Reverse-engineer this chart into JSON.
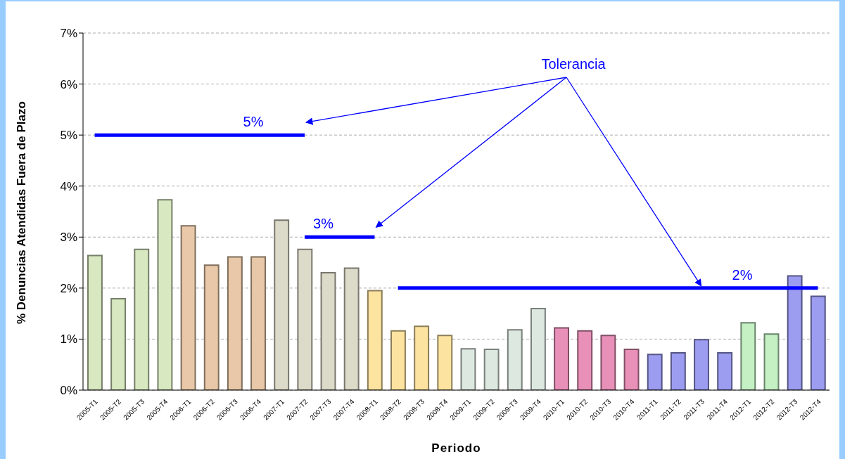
{
  "chart_data": {
    "type": "bar",
    "xlabel": "Periodo",
    "ylabel": "% Denuncias Atendidas Fuera de Plazo",
    "categories": [
      "2005-T1",
      "2005-T2",
      "2005-T3",
      "2005-T4",
      "2006-T1",
      "2006-T2",
      "2006-T3",
      "2006-T4",
      "2007-T1",
      "2007-T2",
      "2007-T3",
      "2007-T4",
      "2008-T1",
      "2008-T2",
      "2008-T3",
      "2008-T4",
      "2009-T1",
      "2009-T2",
      "2009-T3",
      "2009-T4",
      "2010-T1",
      "2010-T2",
      "2010-T3",
      "2010-T4",
      "2011-T1",
      "2011-T2",
      "2011-T3",
      "2011-T4",
      "2012-T1",
      "2012-T2",
      "2012-T3",
      "2012-T4"
    ],
    "series": [
      {
        "values": [
          2.64,
          1.79,
          2.76,
          3.73,
          3.22,
          2.45,
          2.61,
          2.61,
          3.33,
          2.76,
          2.3,
          2.39,
          1.95,
          1.16,
          1.25,
          1.07,
          0.81,
          0.8,
          1.18,
          1.6,
          1.22,
          1.16,
          1.07,
          0.8,
          0.7,
          0.73,
          0.99,
          0.73,
          1.32,
          1.1,
          2.24,
          1.84
        ],
        "colors": [
          "#d8e8c0",
          "#d8e8c0",
          "#d8e8c0",
          "#d8e8c0",
          "#e8c8a8",
          "#e8c8a8",
          "#e8c8a8",
          "#e8c8a8",
          "#dcdac8",
          "#dcdac8",
          "#dcdac8",
          "#dcdac8",
          "#fce4a0",
          "#fce4a0",
          "#fce4a0",
          "#fce4a0",
          "#dce8e0",
          "#dce8e0",
          "#dce8e0",
          "#dce8e0",
          "#e890b8",
          "#e890b8",
          "#e890b8",
          "#e890b8",
          "#9c9cf0",
          "#9c9cf0",
          "#9c9cf0",
          "#9c9cf0",
          "#c4f0c4",
          "#c4f0c4",
          "#9c9cf0",
          "#9c9cf0"
        ]
      },
      {
        "type": "line",
        "name": "5%",
        "color": "#0000ff",
        "values": [
          5,
          5,
          5,
          5,
          5,
          5,
          5,
          5,
          5,
          5,
          null,
          null,
          null,
          null,
          null,
          null,
          null,
          null,
          null,
          null,
          null,
          null,
          null,
          null,
          null,
          null,
          null,
          null,
          null,
          null,
          null,
          null
        ]
      },
      {
        "type": "line",
        "name": "3%",
        "color": "#0000ff",
        "values": [
          null,
          null,
          null,
          null,
          null,
          null,
          null,
          null,
          null,
          3,
          3,
          3,
          3,
          null,
          null,
          null,
          null,
          null,
          null,
          null,
          null,
          null,
          null,
          null,
          null,
          null,
          null,
          null,
          null,
          null,
          null,
          null
        ]
      },
      {
        "type": "line",
        "name": "2%",
        "color": "#0000ff",
        "values": [
          null,
          null,
          null,
          null,
          null,
          null,
          null,
          null,
          null,
          null,
          null,
          null,
          null,
          2,
          2,
          2,
          2,
          2,
          2,
          2,
          2,
          2,
          2,
          2,
          2,
          2,
          2,
          2,
          2,
          2,
          2,
          2
        ]
      }
    ],
    "annotations": [
      {
        "text": "Tolerancia",
        "x": "2011-T3",
        "y": 2
      }
    ],
    "ylim": [
      0,
      7
    ],
    "yticks": [
      {
        "value": 0,
        "label": "0%"
      },
      {
        "value": 1,
        "label": "1%"
      },
      {
        "value": 2,
        "label": "2%"
      },
      {
        "value": 3,
        "label": "3%"
      },
      {
        "value": 4,
        "label": "4%"
      },
      {
        "value": 5,
        "label": "5%"
      },
      {
        "value": 6,
        "label": "6%"
      },
      {
        "value": 7,
        "label": "7%"
      }
    ],
    "grid": "y",
    "legend": false,
    "marker": "none"
  }
}
